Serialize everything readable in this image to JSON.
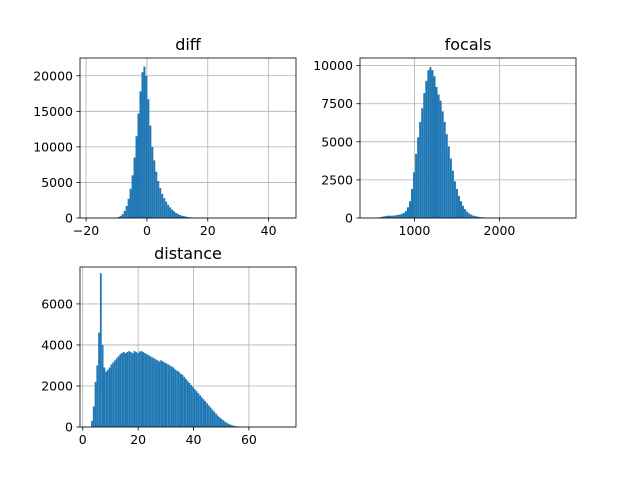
{
  "figure": {
    "background": "#ffffff",
    "bar_color": "#1f77b4",
    "grid_color": "#b0b0b0"
  },
  "chart_data": [
    {
      "type": "bar",
      "title": "diff",
      "xlabel": "",
      "ylabel": "",
      "grid": true,
      "xlim": [
        -22,
        49
      ],
      "ylim": [
        0,
        22500
      ],
      "xticks": [
        -20,
        0,
        20,
        40
      ],
      "yticks": [
        0,
        5000,
        10000,
        15000,
        20000
      ],
      "bin_start": -20,
      "bin_width": 0.65,
      "values": [
        0,
        0,
        0,
        0,
        0,
        0,
        0,
        0,
        0,
        0,
        0,
        0,
        0,
        0,
        10,
        50,
        150,
        300,
        550,
        1000,
        1700,
        2700,
        4100,
        6000,
        8500,
        11500,
        14700,
        17800,
        20500,
        21300,
        20000,
        16700,
        13000,
        10000,
        8100,
        6500,
        5200,
        4200,
        3400,
        2800,
        2300,
        1850,
        1500,
        1200,
        950,
        720,
        550,
        420,
        320,
        250,
        190,
        140,
        100,
        75,
        55,
        40,
        30,
        20,
        15,
        10,
        8,
        5,
        4,
        3,
        2,
        2,
        1,
        1,
        0,
        0,
        0,
        0,
        0,
        0,
        0,
        0,
        0,
        0,
        0,
        0,
        0,
        0,
        0,
        0,
        0,
        0,
        0,
        0,
        0,
        0,
        0,
        0,
        0,
        0,
        0,
        0,
        0,
        0,
        0,
        0,
        0,
        0,
        0,
        0,
        0
      ]
    },
    {
      "type": "bar",
      "title": "focals",
      "xlabel": "",
      "ylabel": "",
      "grid": true,
      "xlim": [
        360,
        2900
      ],
      "ylim": [
        0,
        10500
      ],
      "xticks": [
        1000,
        2000
      ],
      "yticks": [
        0,
        2500,
        5000,
        7500,
        10000
      ],
      "bin_start": 480,
      "bin_width": 24,
      "values": [
        0,
        5,
        10,
        20,
        40,
        70,
        100,
        120,
        150,
        150,
        150,
        160,
        180,
        200,
        230,
        270,
        330,
        450,
        700,
        1100,
        1900,
        3000,
        4200,
        5300,
        6300,
        7200,
        8200,
        9000,
        9700,
        9900,
        9700,
        9300,
        8600,
        8100,
        7700,
        7000,
        6300,
        5500,
        4700,
        3900,
        3100,
        2400,
        1900,
        1450,
        1100,
        800,
        580,
        420,
        300,
        220,
        160,
        120,
        90,
        70,
        50,
        40,
        30,
        25,
        20,
        15,
        10,
        8,
        6,
        5,
        4,
        3,
        2,
        2,
        1,
        1,
        0,
        0,
        0,
        0,
        0,
        0,
        0,
        0,
        0,
        0,
        0,
        0,
        0,
        0,
        0,
        0,
        0,
        0,
        0,
        0,
        0,
        0,
        0,
        0,
        0,
        0,
        0,
        0,
        0,
        0
      ]
    },
    {
      "type": "bar",
      "title": "distance",
      "xlabel": "",
      "ylabel": "",
      "grid": true,
      "xlim": [
        -1,
        77
      ],
      "ylim": [
        0,
        7800
      ],
      "xticks": [
        0,
        20,
        40,
        60
      ],
      "yticks": [
        0,
        2000,
        4000,
        6000
      ],
      "bin_start": 3,
      "bin_width": 0.64,
      "values": [
        300,
        1000,
        2200,
        3000,
        4600,
        7500,
        4000,
        2900,
        2700,
        2800,
        2900,
        3050,
        3150,
        3250,
        3350,
        3450,
        3550,
        3620,
        3650,
        3600,
        3660,
        3700,
        3650,
        3600,
        3700,
        3650,
        3600,
        3680,
        3700,
        3650,
        3600,
        3550,
        3500,
        3450,
        3400,
        3350,
        3300,
        3250,
        3200,
        3250,
        3200,
        3150,
        3100,
        3050,
        3000,
        2950,
        2900,
        2800,
        2750,
        2700,
        2600,
        2550,
        2450,
        2350,
        2250,
        2150,
        2050,
        1950,
        1850,
        1750,
        1650,
        1550,
        1450,
        1350,
        1250,
        1150,
        1050,
        950,
        850,
        750,
        650,
        560,
        480,
        400,
        330,
        270,
        210,
        160,
        120,
        90,
        60,
        40,
        30,
        20,
        12,
        8,
        5,
        3,
        2,
        1,
        0,
        0,
        0,
        0,
        0,
        0,
        0,
        0,
        0,
        0,
        0,
        0,
        0,
        0,
        0
      ]
    }
  ]
}
